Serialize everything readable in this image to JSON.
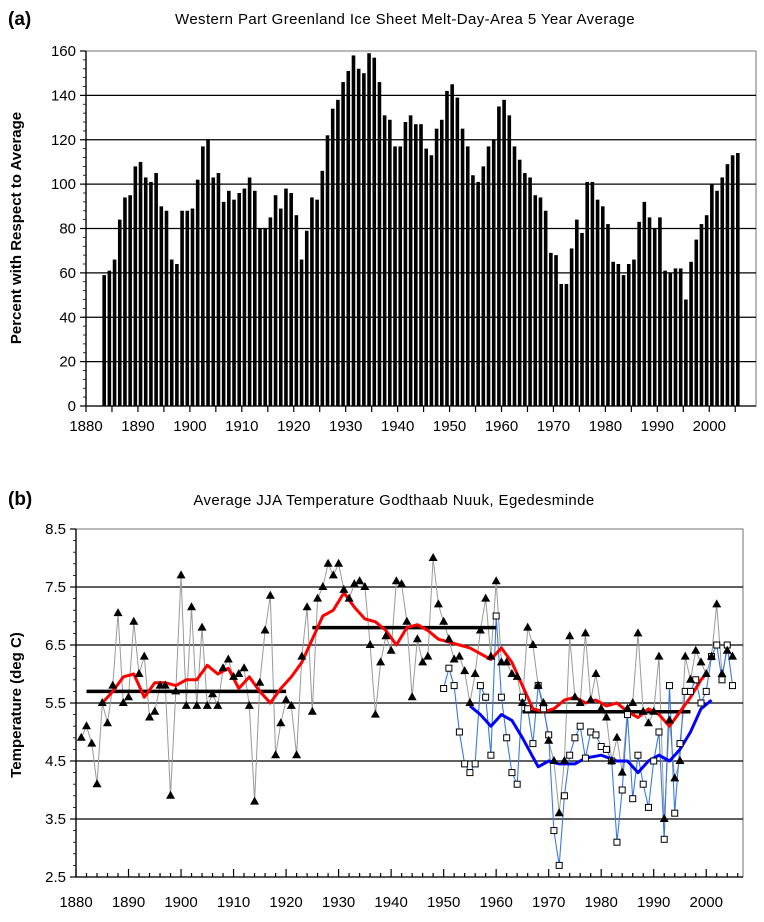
{
  "chart_data": [
    {
      "panel_label": "(a)",
      "type": "bar",
      "title": "Western Part Greenland Ice Sheet Melt-Day-Area 5 Year Average",
      "xlabel": "",
      "ylabel": "Percent with Respect to Average",
      "xlim": [
        1880,
        2009
      ],
      "ylim": [
        0,
        160
      ],
      "yticks": [
        0,
        20,
        40,
        60,
        80,
        100,
        120,
        140,
        160
      ],
      "xticks": [
        1880,
        1890,
        1900,
        1910,
        1920,
        1930,
        1940,
        1950,
        1960,
        1970,
        1980,
        1990,
        2000
      ],
      "grid": true,
      "bar_color": "#000000",
      "start_year": 1883,
      "values": [
        59,
        61,
        66,
        84,
        94,
        95,
        108,
        110,
        103,
        101,
        105,
        90,
        88,
        66,
        64,
        88,
        88,
        89,
        102,
        117,
        120,
        103,
        105,
        92,
        97,
        93,
        96,
        98,
        103,
        97,
        80,
        80,
        85,
        95,
        89,
        98,
        96,
        86,
        66,
        79,
        94,
        93,
        106,
        122,
        134,
        138,
        146,
        151,
        158,
        152,
        150,
        159,
        157,
        146,
        131,
        129,
        117,
        117,
        128,
        131,
        127,
        127,
        116,
        113,
        125,
        129,
        142,
        145,
        139,
        125,
        117,
        104,
        101,
        108,
        117,
        120,
        135,
        138,
        131,
        117,
        111,
        105,
        103,
        95,
        94,
        88,
        69,
        68,
        55,
        55,
        71,
        84,
        78,
        101,
        101,
        93,
        90,
        82,
        65,
        64,
        59,
        64,
        66,
        83,
        92,
        85,
        80,
        85,
        61,
        60,
        62,
        62,
        48,
        65,
        75,
        82,
        86,
        100,
        97,
        103,
        109,
        113,
        114
      ]
    },
    {
      "panel_label": "(b)",
      "type": "line",
      "title": "Average JJA Temperature Godthaab Nuuk, Egedesminde",
      "xlabel": "",
      "ylabel": "Temperature (deg C)",
      "xlim": [
        1880,
        2007
      ],
      "ylim": [
        2.5,
        8.5
      ],
      "yticks": [
        2.5,
        3.5,
        4.5,
        5.5,
        6.5,
        7.5,
        8.5
      ],
      "xticks": [
        1880,
        1890,
        1900,
        1910,
        1920,
        1930,
        1940,
        1950,
        1960,
        1970,
        1980,
        1990,
        2000
      ],
      "grid": true,
      "series": [
        {
          "marker": "triangle",
          "color": "#999999",
          "marker_color": "#000000",
          "start_year": 1881,
          "values": [
            4.9,
            5.1,
            4.8,
            4.1,
            5.5,
            5.15,
            5.8,
            7.05,
            5.5,
            5.6,
            6.9,
            6.0,
            6.3,
            5.25,
            5.35,
            5.8,
            5.8,
            3.9,
            5.7,
            7.7,
            5.45,
            7.15,
            5.45,
            6.8,
            5.45,
            5.65,
            5.45,
            6.1,
            6.25,
            5.95,
            6.0,
            6.1,
            5.45,
            3.8,
            5.85,
            6.75,
            7.35,
            4.6,
            5.15,
            5.55,
            5.45,
            4.6,
            6.3,
            7.15,
            5.35,
            7.3,
            7.5,
            7.9,
            7.7,
            7.9,
            7.45,
            7.3,
            7.55,
            7.6,
            7.5,
            6.5,
            5.3,
            6.2,
            6.65,
            6.4,
            7.6,
            7.55,
            6.9,
            5.6,
            6.6,
            6.2,
            6.3,
            8.0,
            7.2,
            6.9,
            6.6,
            6.25,
            6.3,
            6.05,
            5.5,
            6.0,
            6.75,
            7.3,
            6.3,
            7.6,
            6.2,
            6.2,
            6.0,
            5.95,
            5.5,
            6.8,
            6.5,
            5.8,
            5.5,
            4.85,
            4.5,
            3.6,
            4.5,
            6.65,
            5.6,
            5.5,
            6.7,
            5.55,
            6.0,
            5.4,
            5.25,
            4.5,
            4.9,
            4.3,
            5.4,
            5.5,
            6.7,
            5.35,
            5.15,
            5.35,
            6.3,
            3.5,
            5.2,
            4.2,
            4.5,
            6.3,
            5.9,
            6.4,
            6.2,
            6.0,
            6.3,
            7.2,
            6.0,
            6.4,
            6.3
          ]
        },
        {
          "marker": "square",
          "color": "#3a7ae0",
          "marker_color": "#000000",
          "start_year": 1950,
          "values": [
            5.75,
            6.1,
            5.8,
            5.0,
            4.45,
            4.3,
            4.45,
            5.8,
            5.6,
            4.6,
            7.0,
            5.6,
            4.9,
            4.3,
            4.1,
            5.6,
            5.4,
            4.8,
            5.8,
            5.4,
            4.95,
            3.3,
            2.7,
            3.9,
            4.6,
            4.9,
            5.1,
            4.55,
            5.0,
            4.95,
            4.75,
            4.7,
            4.5,
            3.1,
            4.0,
            5.3,
            3.85,
            4.6,
            4.1,
            3.7,
            4.5,
            5.0,
            3.15,
            5.8,
            3.6,
            4.8,
            5.7,
            5.7,
            5.9,
            5.5,
            5.7,
            6.3,
            6.5,
            5.9,
            6.5,
            5.8
          ]
        },
        {
          "marker": "none",
          "color": "#ff0000",
          "x": [
            1885,
            1887,
            1889,
            1891,
            1893,
            1895,
            1897,
            1899,
            1901,
            1903,
            1905,
            1907,
            1909,
            1911,
            1913,
            1915,
            1917,
            1919,
            1921,
            1923,
            1925,
            1927,
            1929,
            1931,
            1933,
            1935,
            1937,
            1939,
            1941,
            1943,
            1945,
            1947,
            1949,
            1951,
            1953,
            1955,
            1957,
            1959,
            1961,
            1963,
            1965,
            1967,
            1969,
            1971,
            1973,
            1975,
            1977,
            1979,
            1981,
            1983,
            1985,
            1987,
            1989,
            1991,
            1993,
            1995,
            1997,
            1999,
            2000
          ],
          "values": [
            5.5,
            5.7,
            5.95,
            6.0,
            5.6,
            5.85,
            5.85,
            5.8,
            5.9,
            5.9,
            6.15,
            6.0,
            6.1,
            5.75,
            5.95,
            5.7,
            5.5,
            5.75,
            5.95,
            6.2,
            6.6,
            7.0,
            7.1,
            7.4,
            7.15,
            6.95,
            6.9,
            6.75,
            6.5,
            6.8,
            6.85,
            6.75,
            6.6,
            6.55,
            6.5,
            6.45,
            6.35,
            6.25,
            6.45,
            6.2,
            5.8,
            5.4,
            5.35,
            5.4,
            5.55,
            5.6,
            5.5,
            5.55,
            5.45,
            5.5,
            5.35,
            5.25,
            5.4,
            5.3,
            5.1,
            5.35,
            5.6,
            5.9,
            6.0
          ]
        },
        {
          "marker": "none",
          "color": "#0000ff",
          "x": [
            1955,
            1957,
            1959,
            1961,
            1963,
            1965,
            1968,
            1970,
            1972,
            1975,
            1977,
            1980,
            1983,
            1985,
            1987,
            1989,
            1991,
            1993,
            1995,
            1997,
            1999,
            2001
          ],
          "values": [
            5.45,
            5.3,
            5.1,
            5.3,
            5.2,
            4.9,
            4.4,
            4.5,
            4.45,
            4.45,
            4.55,
            4.6,
            4.5,
            4.5,
            4.3,
            4.5,
            4.6,
            4.5,
            4.7,
            5.0,
            5.4,
            5.55
          ]
        },
        {
          "marker": "none",
          "color": "#000000",
          "segments": [
            {
              "x": [
                1882,
                1920
              ],
              "value": 5.7
            },
            {
              "x": [
                1925,
                1960
              ],
              "value": 6.8
            },
            {
              "x": [
                1965,
                1997
              ],
              "value": 5.35
            }
          ]
        }
      ]
    }
  ]
}
